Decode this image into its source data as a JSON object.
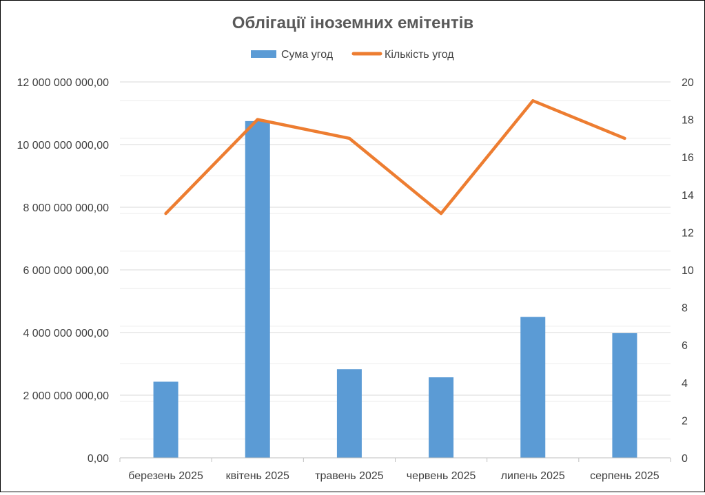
{
  "chart_data": {
    "type": "bar",
    "title": "Облігації іноземних емітентів",
    "categories": [
      "березень 2025",
      "квітень 2025",
      "травень 2025",
      "червень 2025",
      "липень 2025",
      "серпень 2025"
    ],
    "series": [
      {
        "name": "Сума угод",
        "type": "bar",
        "axis": "left",
        "color": "#5b9bd5",
        "values": [
          2430000000,
          10750000000,
          2830000000,
          2570000000,
          4500000000,
          3980000000
        ]
      },
      {
        "name": "Кількість угод",
        "type": "line",
        "axis": "right",
        "color": "#ed7d31",
        "values": [
          13,
          18,
          17,
          13,
          19,
          17
        ]
      }
    ],
    "y_left": {
      "min": 0,
      "max": 12000000000,
      "step": 2000000000,
      "tick_labels": [
        "0,00",
        "2 000 000 000,00",
        "4 000 000 000,00",
        "6 000 000 000,00",
        "8 000 000 000,00",
        "10 000 000 000,00",
        "12 000 000 000,00"
      ]
    },
    "y_right": {
      "min": 0,
      "max": 20,
      "step": 2,
      "tick_labels": [
        "0",
        "2",
        "4",
        "6",
        "8",
        "10",
        "12",
        "14",
        "16",
        "18",
        "20"
      ]
    },
    "grid": true,
    "legend": "top"
  }
}
